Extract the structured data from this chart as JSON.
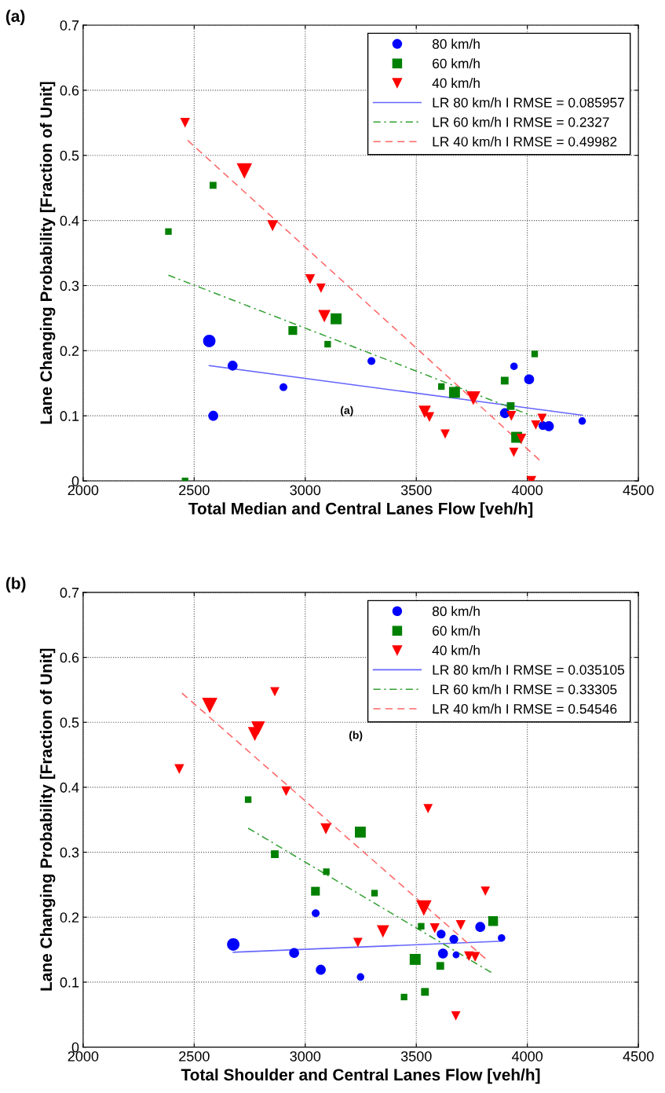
{
  "chart_data": [
    {
      "type": "scatter",
      "xlabel": "Total Median and Central Lanes Flow [veh/h]",
      "ylabel": "Lane Changing Probability [Fraction of Unit]",
      "annotations": [
        "(a)",
        "(a)"
      ],
      "xlim": [
        2000,
        4500
      ],
      "xticks": [
        2000,
        2500,
        3000,
        3500,
        4000,
        4500
      ],
      "ylim": [
        0,
        0.7
      ],
      "yticks": [
        0,
        0.1,
        0.2,
        0.3,
        0.4,
        0.5,
        0.6,
        0.7
      ],
      "grid": true,
      "legend": "top right",
      "series": [
        {
          "name": "80 km/h",
          "marker": "circle",
          "color": "#0000ff",
          "x": [
            2568,
            2673,
            2586,
            2902,
            3298,
            3940,
            4008,
            3899,
            4070,
            4097,
            4247
          ],
          "values": [
            0.215,
            0.177,
            0.1,
            0.144,
            0.184,
            0.176,
            0.156,
            0.104,
            0.085,
            0.084,
            0.092
          ],
          "sizes": [
            1,
            0.64,
            0.64,
            0.4,
            0.4,
            0.36,
            0.64,
            0.64,
            0.5,
            0.64,
            0.36
          ]
        },
        {
          "name": "60 km/h",
          "marker": "square",
          "color": "#008000",
          "x": [
            2384,
            2585,
            2459,
            2944,
            3139,
            3101,
            3613,
            3672,
            3898,
            3925,
            3952,
            4033
          ],
          "values": [
            0.383,
            0.454,
            0.0,
            0.231,
            0.249,
            0.21,
            0.145,
            0.136,
            0.154,
            0.115,
            0.067,
            0.195
          ],
          "sizes": [
            0.36,
            0.4,
            0.36,
            0.64,
            1,
            0.36,
            0.36,
            1,
            0.5,
            0.5,
            1,
            0.36
          ]
        },
        {
          "name": "40 km/h",
          "marker": "triangle",
          "color": "#ff0000",
          "x": [
            2459,
            2726,
            2853,
            3022,
            3071,
            3086,
            3538,
            3559,
            3630,
            3757,
            3928,
            3939,
            3973,
            4038,
            4066,
            4018
          ],
          "values": [
            0.55,
            0.476,
            0.392,
            0.31,
            0.296,
            0.253,
            0.106,
            0.098,
            0.072,
            0.127,
            0.1,
            0.044,
            0.065,
            0.086,
            0.096,
            0.0
          ],
          "sizes": [
            0.4,
            1,
            0.5,
            0.4,
            0.36,
            0.64,
            0.64,
            0.4,
            0.36,
            0.8,
            0.4,
            0.36,
            0.4,
            0.36,
            0.36,
            0.4
          ]
        },
        {
          "name": "LR 80 km/h I RMSE = 0.085957",
          "type": "line",
          "line_style": "solid",
          "color": "#6666ff",
          "x": [
            2568,
            4247
          ],
          "values": [
            0.177,
            0.101
          ]
        },
        {
          "name": "LR 60 km/h I RMSE = 0.2327",
          "type": "line",
          "line_style": "dashdot",
          "color": "#33a033",
          "x": [
            2384,
            4020
          ],
          "values": [
            0.316,
            0.1
          ]
        },
        {
          "name": "LR 40 km/h I RMSE = 0.49982",
          "type": "line",
          "line_style": "dashed",
          "color": "#ff6666",
          "x": [
            2471,
            4068
          ],
          "values": [
            0.523,
            0.028
          ]
        }
      ]
    },
    {
      "type": "scatter",
      "xlabel": "Total Shoulder and Central Lanes Flow [veh/h]",
      "ylabel": "Lane Changing Probability [Fraction of Unit]",
      "annotations": [
        "(b)",
        "(b)"
      ],
      "xlim": [
        2000,
        4500
      ],
      "xticks": [
        2000,
        2500,
        3000,
        3500,
        4000,
        4500
      ],
      "ylim": [
        0,
        0.7
      ],
      "yticks": [
        0,
        0.1,
        0.2,
        0.3,
        0.4,
        0.5,
        0.6,
        0.7
      ],
      "grid": true,
      "legend": "top right",
      "series": [
        {
          "name": "80 km/h",
          "marker": "circle",
          "color": "#0000ff",
          "x": [
            2676,
            2950,
            3070,
            3249,
            3047,
            3788,
            3884,
            3612,
            3669,
            3620,
            3679
          ],
          "values": [
            0.158,
            0.145,
            0.119,
            0.108,
            0.206,
            0.185,
            0.168,
            0.174,
            0.166,
            0.144,
            0.142
          ],
          "sizes": [
            1,
            0.64,
            0.64,
            0.36,
            0.4,
            0.64,
            0.36,
            0.5,
            0.5,
            0.64,
            0.3
          ]
        },
        {
          "name": "60 km/h",
          "marker": "square",
          "color": "#008000",
          "x": [
            2743,
            3248,
            2863,
            3095,
            3312,
            3046,
            3445,
            3846,
            3522,
            3495,
            3608,
            3539
          ],
          "values": [
            0.381,
            0.331,
            0.297,
            0.27,
            0.237,
            0.24,
            0.077,
            0.194,
            0.186,
            0.135,
            0.125,
            0.085
          ],
          "sizes": [
            0.36,
            1,
            0.5,
            0.36,
            0.36,
            0.64,
            0.36,
            0.8,
            0.36,
            1,
            0.5,
            0.5
          ]
        },
        {
          "name": "40 km/h",
          "marker": "triangle",
          "color": "#ff0000",
          "x": [
            2863,
            2570,
            2788,
            2773,
            2433,
            2914,
            3093,
            3350,
            3237,
            3553,
            3811,
            3534,
            3583,
            3700,
            3737,
            3765,
            3678
          ],
          "values": [
            0.547,
            0.526,
            0.491,
            0.482,
            0.428,
            0.394,
            0.336,
            0.178,
            0.161,
            0.367,
            0.24,
            0.214,
            0.183,
            0.188,
            0.14,
            0.139,
            0.048
          ],
          "sizes": [
            0.36,
            1,
            0.8,
            0.8,
            0.4,
            0.4,
            0.5,
            0.64,
            0.36,
            0.36,
            0.36,
            1,
            0.4,
            0.4,
            0.4,
            0.4,
            0.36
          ]
        },
        {
          "name": "LR 80 km/h I RMSE = 0.035105",
          "type": "line",
          "line_style": "solid",
          "color": "#6666ff",
          "x": [
            2676,
            3884
          ],
          "values": [
            0.146,
            0.163
          ]
        },
        {
          "name": "LR 60 km/h I RMSE = 0.33305",
          "type": "line",
          "line_style": "dashdot",
          "color": "#33a033",
          "x": [
            2743,
            3842
          ],
          "values": [
            0.337,
            0.114
          ]
        },
        {
          "name": "LR 40 km/h I RMSE = 0.54546",
          "type": "line",
          "line_style": "dashed",
          "color": "#ff6666",
          "x": [
            2445,
            3812
          ],
          "values": [
            0.545,
            0.136
          ]
        }
      ]
    }
  ]
}
